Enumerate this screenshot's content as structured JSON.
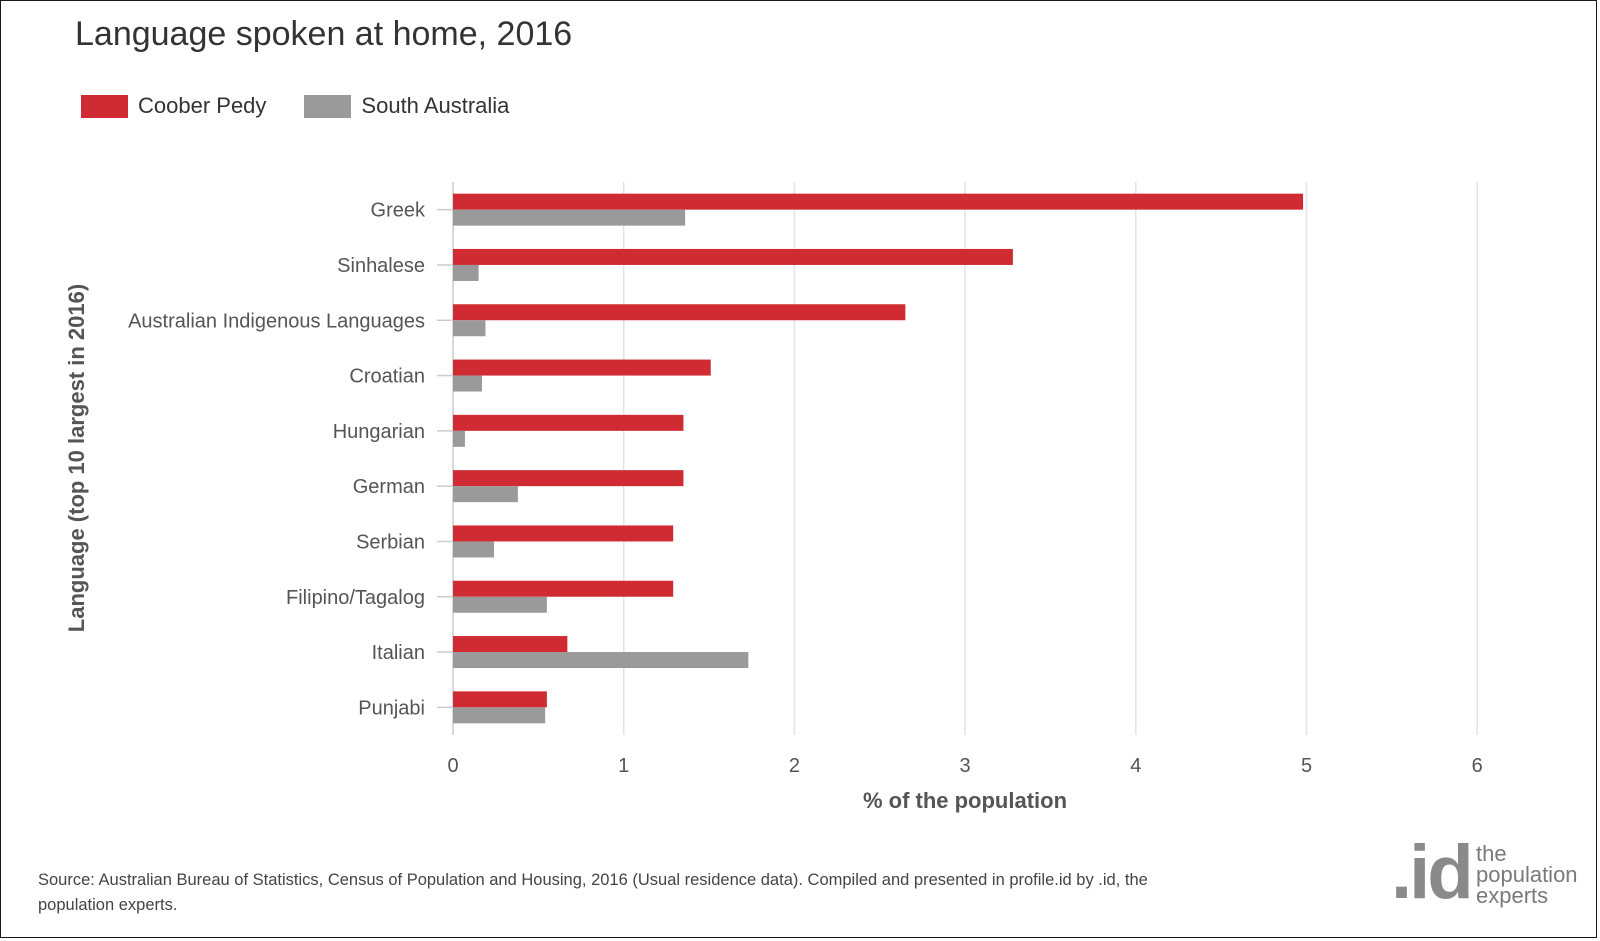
{
  "title": "Language spoken at home, 2016",
  "legend": [
    {
      "label": "Coober Pedy",
      "color": "#d02b33"
    },
    {
      "label": "South Australia",
      "color": "#9a9a9a"
    }
  ],
  "chart_data": {
    "type": "bar",
    "orientation": "horizontal",
    "title": "Language spoken at home, 2016",
    "xlabel": "% of the population",
    "ylabel": "Language (top 10 largest in 2016)",
    "xlim": [
      0,
      6
    ],
    "xticks": [
      "0",
      "1",
      "2",
      "3",
      "4",
      "5",
      "6"
    ],
    "grid": true,
    "legend_position": "top-left",
    "categories": [
      "Greek",
      "Sinhalese",
      "Australian Indigenous Languages",
      "Croatian",
      "Hungarian",
      "German",
      "Serbian",
      "Filipino/Tagalog",
      "Italian",
      "Punjabi"
    ],
    "series": [
      {
        "name": "Coober Pedy",
        "color": "#d02b33",
        "values": [
          4.98,
          3.28,
          2.65,
          1.51,
          1.35,
          1.35,
          1.29,
          1.29,
          0.67,
          0.55
        ]
      },
      {
        "name": "South Australia",
        "color": "#9a9a9a",
        "values": [
          1.36,
          0.15,
          0.19,
          0.17,
          0.07,
          0.38,
          0.24,
          0.55,
          1.73,
          0.54
        ]
      }
    ]
  },
  "footer": {
    "source_text": "Source: Australian Bureau of Statistics, Census of Population and Housing, 2016 (Usual residence data). Compiled and presented in profile.id by .id, the population experts."
  },
  "logo": {
    "mark": ".id",
    "text": "the\npopulation\nexperts"
  }
}
